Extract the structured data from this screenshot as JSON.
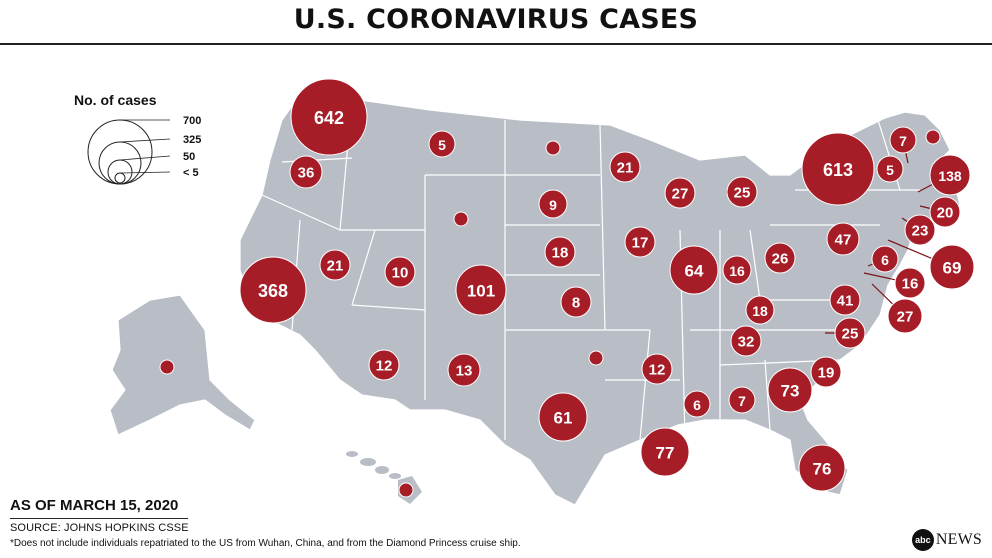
{
  "title": "U.S. CORONAVIRUS CASES",
  "colors": {
    "land": "#b8bdc6",
    "border": "#ffffff",
    "bubble": "#a61c27",
    "leader": "#7a1219"
  },
  "legend": {
    "title": "No. of cases",
    "entries": [
      {
        "label": "700",
        "value": 700
      },
      {
        "label": "325",
        "value": 325
      },
      {
        "label": "50",
        "value": 50
      },
      {
        "label": "< 5",
        "value": 5
      }
    ]
  },
  "bubbles": [
    {
      "state": "Washington",
      "label": "642"
    },
    {
      "state": "Oregon",
      "label": "36"
    },
    {
      "state": "Montana",
      "label": "5"
    },
    {
      "state": "North Dakota",
      "label": ""
    },
    {
      "state": "Minnesota",
      "label": "21"
    },
    {
      "state": "Wisconsin",
      "label": "27"
    },
    {
      "state": "Michigan",
      "label": "25"
    },
    {
      "state": "New York",
      "label": "613"
    },
    {
      "state": "Vermont",
      "label": "7"
    },
    {
      "state": "Maine",
      "label": ""
    },
    {
      "state": "New Hampshire",
      "label": "5"
    },
    {
      "state": "Massachusetts",
      "label": "138"
    },
    {
      "state": "Rhode Island",
      "label": "20"
    },
    {
      "state": "Connecticut",
      "label": "23"
    },
    {
      "state": "Wyoming",
      "label": ""
    },
    {
      "state": "South Dakota",
      "label": "9"
    },
    {
      "state": "Nebraska",
      "label": "18"
    },
    {
      "state": "Iowa",
      "label": "17"
    },
    {
      "state": "Pennsylvania",
      "label": "47"
    },
    {
      "state": "New Jersey",
      "label": "69"
    },
    {
      "state": "Delaware",
      "label": "6"
    },
    {
      "state": "Maryland",
      "label": "16"
    },
    {
      "state": "District of Columbia",
      "label": "27"
    },
    {
      "state": "California",
      "label": "368"
    },
    {
      "state": "Nevada",
      "label": "21"
    },
    {
      "state": "Utah",
      "label": "10"
    },
    {
      "state": "Colorado",
      "label": "101"
    },
    {
      "state": "Illinois",
      "label": "64"
    },
    {
      "state": "Indiana",
      "label": "16"
    },
    {
      "state": "Ohio",
      "label": "26"
    },
    {
      "state": "Kansas",
      "label": "8"
    },
    {
      "state": "Virginia",
      "label": "41"
    },
    {
      "state": "Kentucky",
      "label": "18"
    },
    {
      "state": "Tennessee",
      "label": "32"
    },
    {
      "state": "North Carolina",
      "label": "25"
    },
    {
      "state": "Arizona",
      "label": "12"
    },
    {
      "state": "New Mexico",
      "label": "13"
    },
    {
      "state": "Oklahoma",
      "label": ""
    },
    {
      "state": "Arkansas",
      "label": "12"
    },
    {
      "state": "South Carolina",
      "label": "19"
    },
    {
      "state": "Alaska",
      "label": ""
    },
    {
      "state": "Mississippi",
      "label": "6"
    },
    {
      "state": "Alabama",
      "label": "7"
    },
    {
      "state": "Georgia",
      "label": "73"
    },
    {
      "state": "Texas",
      "label": "61"
    },
    {
      "state": "Louisiana",
      "label": "77"
    },
    {
      "state": "Florida",
      "label": "76"
    },
    {
      "state": "Hawaii",
      "label": ""
    }
  ],
  "date_label": "AS OF MARCH 15, 2020",
  "source": "SOURCE: JOHNS HOPKINS CSSE",
  "footnote": "*Does not include individuals repatriated to the US from Wuhan, China, and from the Diamond Princess cruise ship.",
  "brand": {
    "mark": "abc",
    "name": "NEWS"
  }
}
